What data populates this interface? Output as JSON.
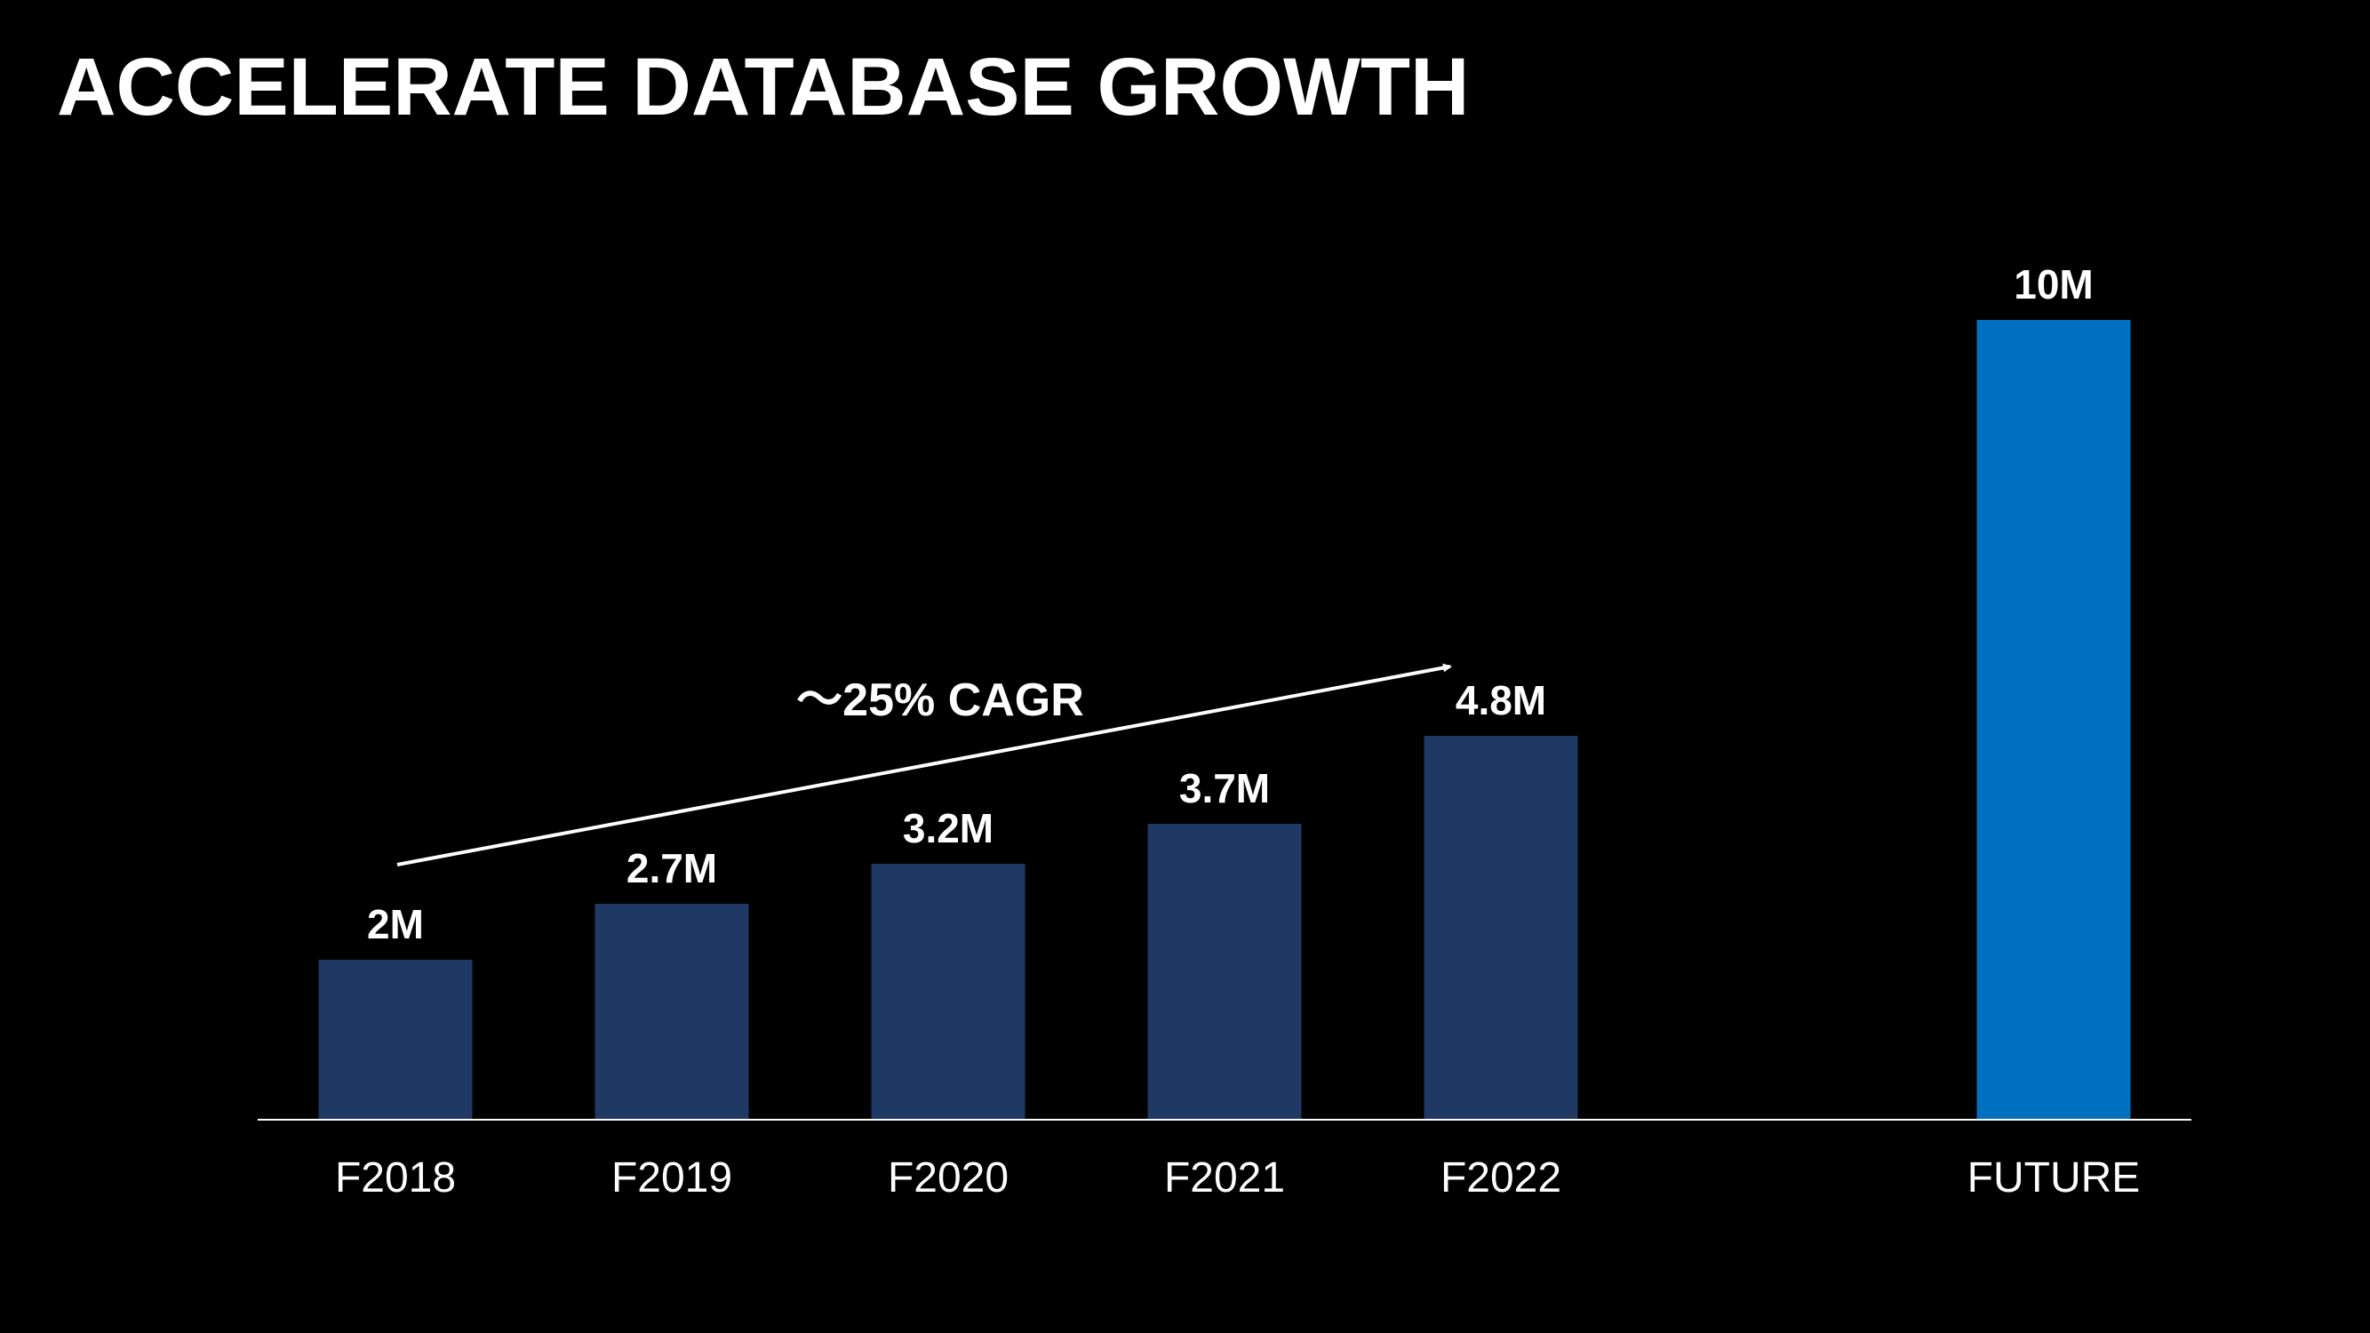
{
  "slide": {
    "title": "ACCELERATE DATABASE GROWTH"
  },
  "chart_data": {
    "type": "bar",
    "title": "ACCELERATE DATABASE GROWTH",
    "categories": [
      "F2018",
      "F2019",
      "F2020",
      "F2021",
      "F2022",
      "FUTURE"
    ],
    "values": [
      2,
      2.7,
      3.2,
      3.7,
      4.8,
      10
    ],
    "value_labels": [
      "2M",
      "2.7M",
      "3.2M",
      "3.7M",
      "4.8M",
      "10M"
    ],
    "unit": "M",
    "ylim": [
      0,
      10
    ],
    "grid": false,
    "legend": "none",
    "annotations": [
      {
        "text": "～25% CAGR",
        "from_category": "F2018",
        "to_category": "F2022",
        "arrow": true
      }
    ]
  },
  "colors": {
    "background": "#000000",
    "historical_bar": "#1f3864",
    "future_bar": "#0070c0",
    "text": "#ffffff",
    "axis": "#ffffff"
  }
}
